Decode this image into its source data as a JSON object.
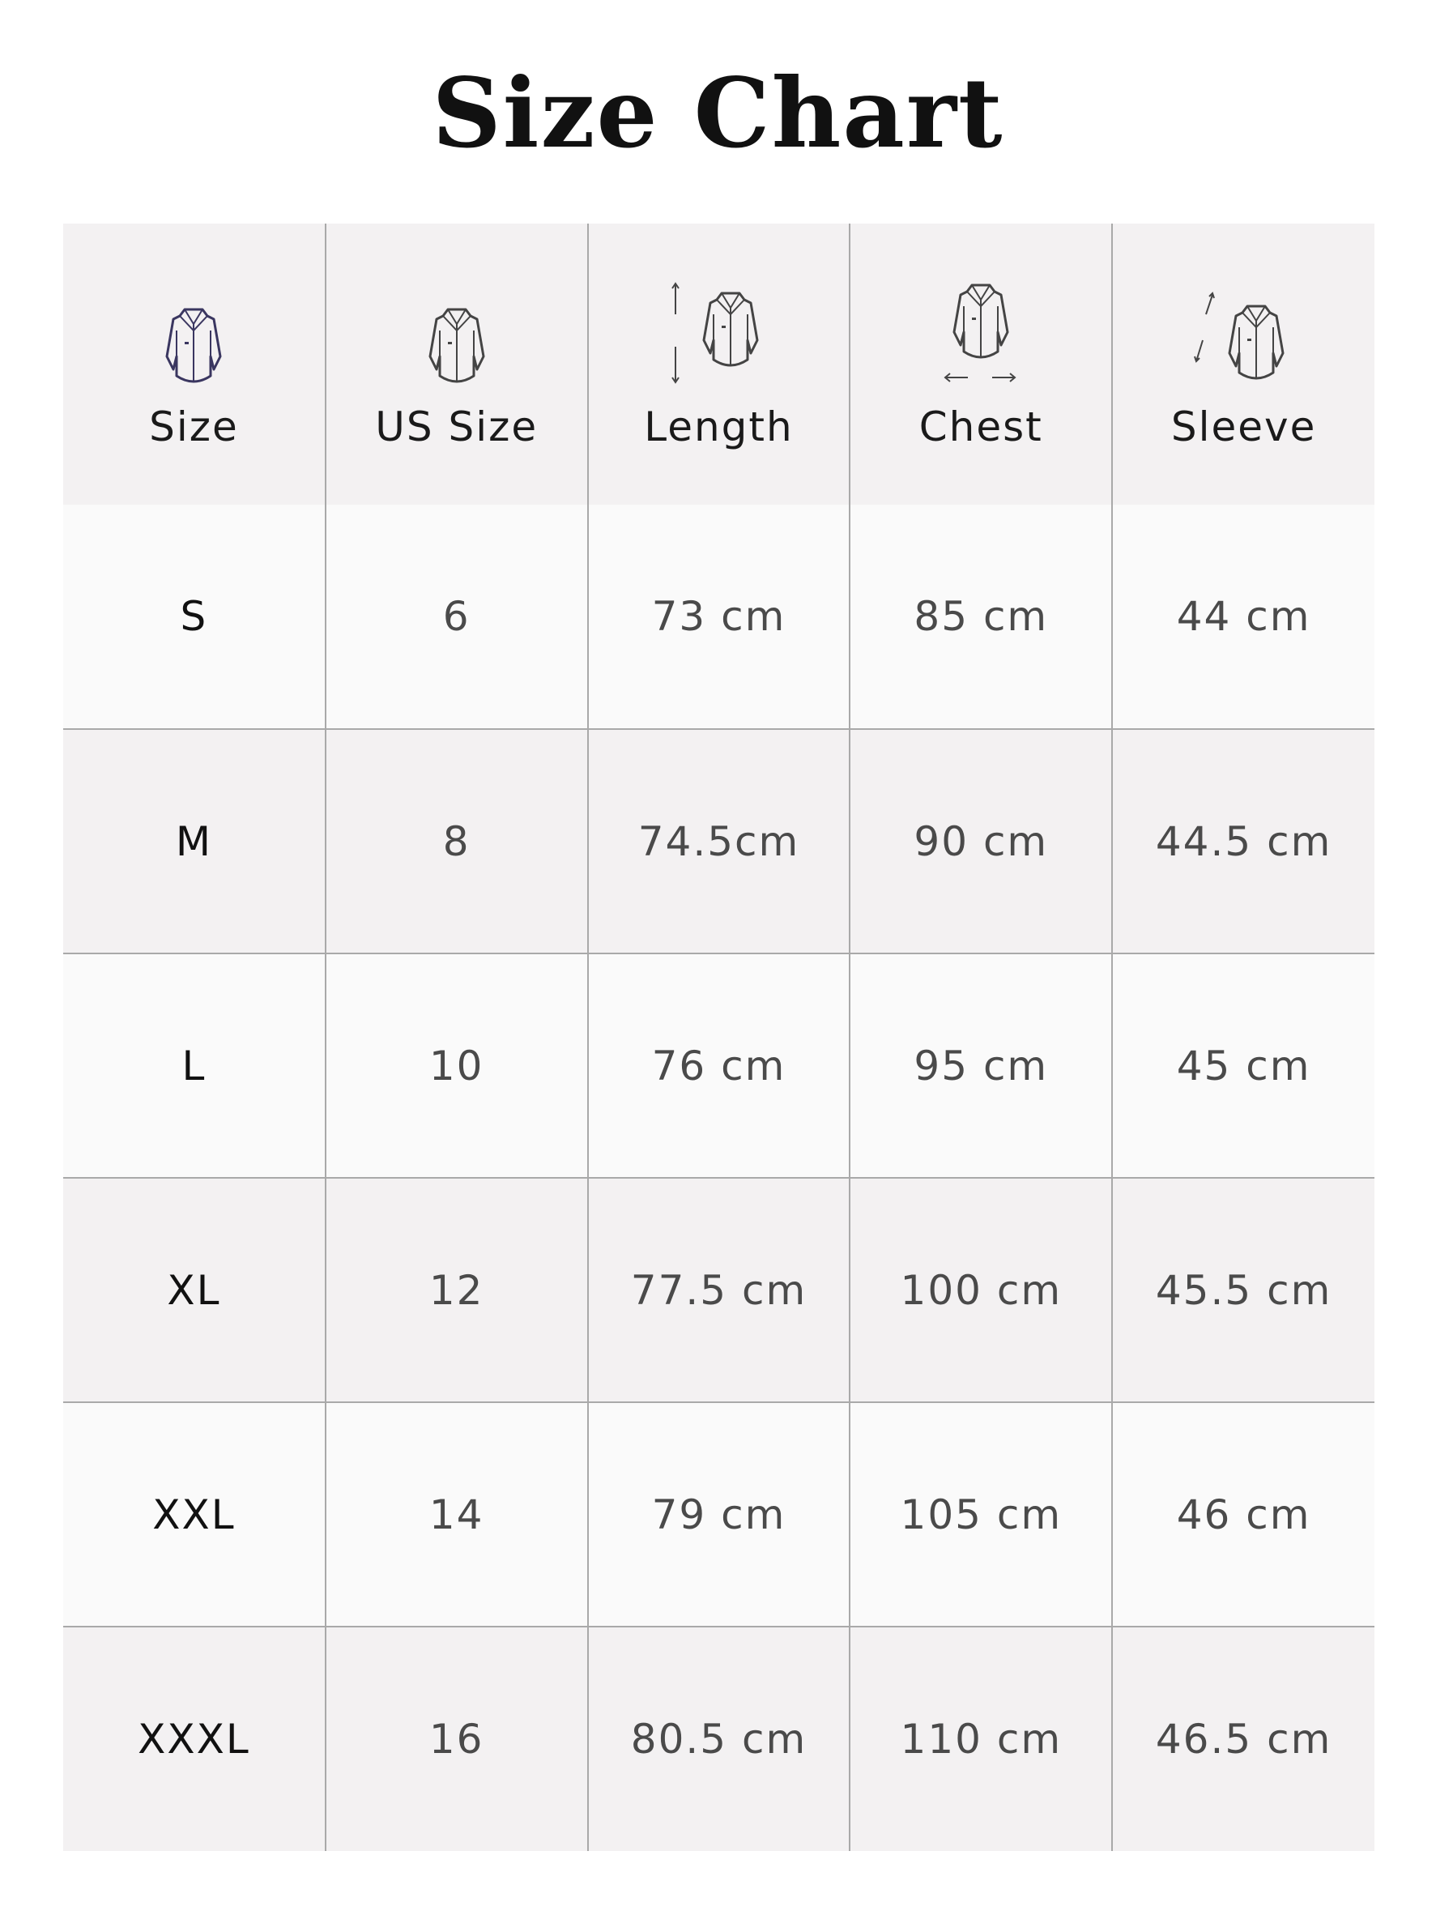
{
  "title": "Size Chart",
  "colors": {
    "header_bg": "#f3f1f2",
    "row_alt_bg": "#f3f1f2",
    "row_bg": "#fafafa",
    "grid": "#a9a9a9",
    "size_icon": "#3a3660"
  },
  "columns": [
    {
      "label": "Size",
      "icon": "shirt-icon"
    },
    {
      "label": "US Size",
      "icon": "shirt-icon"
    },
    {
      "label": "Length",
      "icon": "shirt-length-icon"
    },
    {
      "label": "Chest",
      "icon": "shirt-chest-icon"
    },
    {
      "label": "Sleeve",
      "icon": "shirt-sleeve-icon"
    }
  ],
  "rows": [
    [
      "S",
      "6",
      "73 cm",
      "85 cm",
      "44 cm"
    ],
    [
      "M",
      "8",
      "74.5cm",
      "90 cm",
      "44.5 cm"
    ],
    [
      "L",
      "10",
      "76 cm",
      "95 cm",
      "45 cm"
    ],
    [
      "XL",
      "12",
      "77.5 cm",
      "100 cm",
      "45.5 cm"
    ],
    [
      "XXL",
      "14",
      "79 cm",
      "105 cm",
      "46 cm"
    ],
    [
      "XXXL",
      "16",
      "80.5 cm",
      "110 cm",
      "46.5 cm"
    ]
  ]
}
